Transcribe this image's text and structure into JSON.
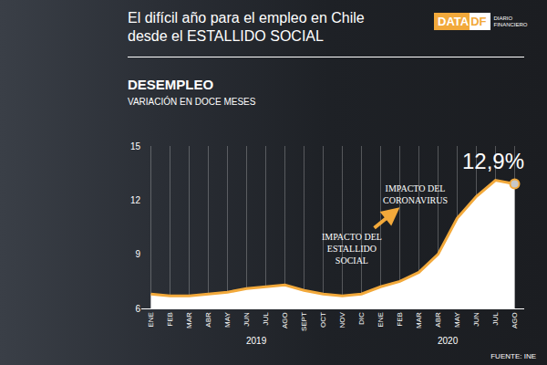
{
  "chart_data": {
    "type": "line",
    "title": "El difícil año para el empleo en Chile\ndesde el ESTALLIDO SOCIAL",
    "logo": [
      "DATA",
      "DF"
    ],
    "logo_caption": "DIARIO\nFINANCIERO",
    "subtitle": "DESEMPLEO",
    "y_label": "VARIACIÓN EN DOCE MESES",
    "source": "FUENTE: INE",
    "categories": [
      "ENE",
      "FEB",
      "MAR",
      "ABR",
      "MAY",
      "JUN",
      "JUL",
      "AGO",
      "SEPT",
      "OCT",
      "NOV",
      "DIC",
      "ENE",
      "FEB",
      "MAR",
      "ABR",
      "MAY",
      "JUN",
      "JUL",
      "AGO"
    ],
    "year_groups": [
      {
        "label": "2019",
        "count": 12
      },
      {
        "label": "2020",
        "count": 8
      }
    ],
    "values": [
      6.8,
      6.7,
      6.7,
      6.8,
      6.9,
      7.1,
      7.2,
      7.3,
      7.0,
      6.8,
      6.7,
      6.8,
      7.2,
      7.5,
      8.0,
      9.0,
      11.0,
      12.2,
      13.1,
      12.9
    ],
    "value_labels": [
      null,
      null,
      null,
      null,
      null,
      null,
      null,
      null,
      null,
      null,
      null,
      null,
      null,
      null,
      null,
      null,
      null,
      null,
      null,
      "12,9%"
    ],
    "color": "#f2a93b",
    "ylim": [
      6,
      15
    ],
    "yticks": [
      6,
      9,
      12,
      15
    ],
    "grid": true,
    "annotations": [
      {
        "text": "IMPACTO DEL\nESTALLIDO\nSOCIAL"
      },
      {
        "text": "IMPACTO DEL\nCORONAVIRUS"
      }
    ]
  }
}
